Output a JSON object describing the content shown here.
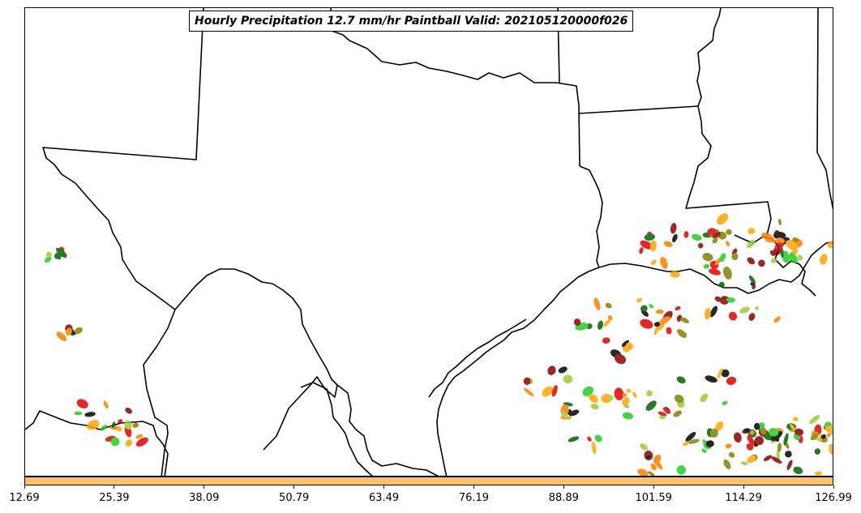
{
  "title": "Hourly Precipitation 12.7 mm/hr Paintball Valid: 202105120000f026",
  "colorbar": {
    "color": "#ffc16b",
    "ticks": [
      "12.69",
      "25.39",
      "38.09",
      "50.79",
      "63.49",
      "76.19",
      "88.89",
      "101.59",
      "114.29",
      "126.99"
    ]
  },
  "paint_colors": [
    "#8b0000",
    "#006400",
    "#ff7f00",
    "#808000",
    "#e00000",
    "#22cc22",
    "#000000",
    "#ffa500",
    "#9acd32"
  ],
  "map_elements": [
    "state-boundaries",
    "coastline",
    "precipitation-paintballs"
  ]
}
